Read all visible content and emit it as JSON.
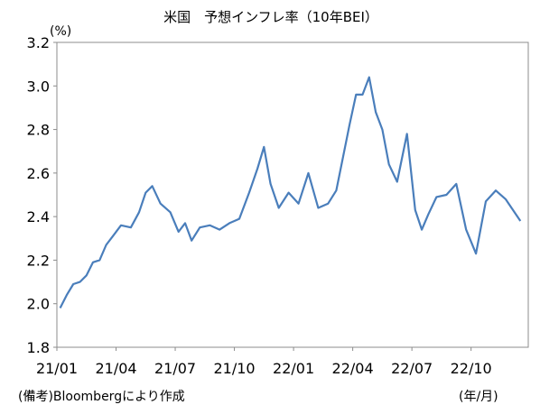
{
  "chart_data": {
    "type": "line",
    "title": "米国　予想インフレ率（10年BEI）",
    "ylabel": "(%)",
    "xunit": "(年/月)",
    "source": "(備考)Bloombergにより作成",
    "ylim": [
      1.8,
      3.2
    ],
    "yticks": [
      "1.8",
      "2.0",
      "2.2",
      "2.4",
      "2.6",
      "2.8",
      "3.0",
      "3.2"
    ],
    "xticks": [
      "21/01",
      "21/04",
      "21/07",
      "21/10",
      "22/01",
      "22/04",
      "22/07",
      "22/10"
    ],
    "xlim": [
      "2021-01",
      "2022-12"
    ],
    "grid": false,
    "legend": "none",
    "line_color": "#4a7ebb",
    "series": [
      {
        "x": [
          "2021-01",
          "2021-01",
          "2021-01",
          "2021-02",
          "2021-02",
          "2021-02",
          "2021-03",
          "2021-03",
          "2021-03",
          "2021-04",
          "2021-04",
          "2021-05",
          "2021-05",
          "2021-05",
          "2021-06",
          "2021-06",
          "2021-07",
          "2021-07",
          "2021-07",
          "2021-08",
          "2021-08",
          "2021-09",
          "2021-09",
          "2021-10",
          "2021-10",
          "2021-11",
          "2021-11",
          "2021-11",
          "2021-12",
          "2021-12",
          "2022-01",
          "2022-01",
          "2022-02",
          "2022-02",
          "2022-03",
          "2022-03",
          "2022-03",
          "2022-04",
          "2022-04",
          "2022-04",
          "2022-05",
          "2022-05",
          "2022-05",
          "2022-06",
          "2022-06",
          "2022-07",
          "2022-07",
          "2022-07",
          "2022-08",
          "2022-08",
          "2022-09",
          "2022-09",
          "2022-10",
          "2022-10",
          "2022-11",
          "2022-11",
          "2022-12"
        ],
        "values": [
          1.98,
          2.04,
          2.09,
          2.1,
          2.13,
          2.19,
          2.2,
          2.27,
          2.31,
          2.36,
          2.35,
          2.42,
          2.51,
          2.54,
          2.46,
          2.42,
          2.33,
          2.37,
          2.29,
          2.35,
          2.36,
          2.34,
          2.37,
          2.39,
          2.51,
          2.62,
          2.72,
          2.55,
          2.44,
          2.51,
          2.46,
          2.6,
          2.44,
          2.46,
          2.52,
          2.67,
          2.82,
          2.96,
          2.96,
          3.04,
          2.88,
          2.8,
          2.64,
          2.56,
          2.78,
          2.43,
          2.34,
          2.41,
          2.49,
          2.5,
          2.55,
          2.34,
          2.23,
          2.47,
          2.52,
          2.48,
          2.38
        ]
      }
    ]
  }
}
